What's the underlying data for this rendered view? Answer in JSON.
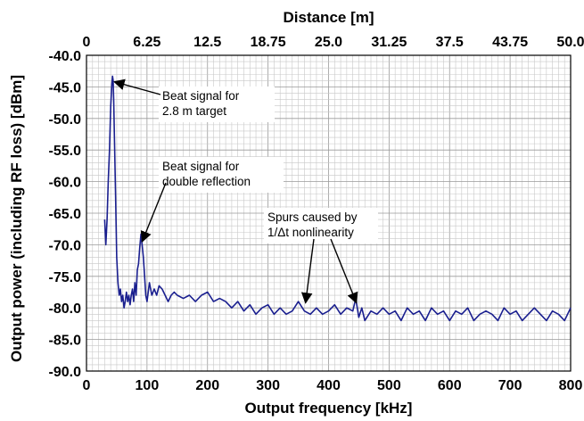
{
  "chart_data": {
    "type": "line",
    "title": "",
    "xlabel": "Output frequency [kHz]",
    "ylabel": "Output power (including RF loss) [dBm]",
    "x2label": "Distance [m]",
    "xlim": [
      0,
      800
    ],
    "ylim": [
      -90,
      -40
    ],
    "x2lim": [
      0,
      50
    ],
    "x_ticks": [
      "0",
      "100",
      "200",
      "300",
      "400",
      "500",
      "600",
      "700",
      "800"
    ],
    "y_ticks": [
      "-40.0",
      "-45.0",
      "-50.0",
      "-55.0",
      "-60.0",
      "-65.0",
      "-70.0",
      "-75.0",
      "-80.0",
      "-85.0",
      "-90.0"
    ],
    "x2_ticks": [
      "0",
      "6.25",
      "12.5",
      "18.75",
      "25.0",
      "31.25",
      "37.5",
      "43.75",
      "50.0"
    ],
    "grid": true,
    "series": [
      {
        "color": "#1a1f8f",
        "x": [
          30,
          32,
          34,
          36,
          38,
          40,
          42,
          43,
          44,
          45,
          46,
          48,
          50,
          52,
          54,
          56,
          58,
          60,
          62,
          64,
          66,
          68,
          70,
          72,
          74,
          76,
          78,
          80,
          82,
          84,
          86,
          88,
          90,
          92,
          94,
          96,
          98,
          100,
          104,
          108,
          112,
          116,
          120,
          125,
          130,
          135,
          140,
          145,
          150,
          160,
          170,
          180,
          190,
          200,
          210,
          220,
          230,
          240,
          250,
          260,
          270,
          280,
          290,
          300,
          310,
          320,
          330,
          340,
          350,
          360,
          370,
          380,
          390,
          400,
          410,
          420,
          430,
          440,
          445,
          450,
          455,
          460,
          470,
          480,
          490,
          500,
          510,
          520,
          530,
          540,
          550,
          560,
          570,
          580,
          590,
          600,
          610,
          620,
          630,
          640,
          650,
          660,
          670,
          680,
          690,
          700,
          710,
          720,
          730,
          740,
          750,
          760,
          770,
          780,
          790,
          800
        ],
        "y": [
          -66,
          -70,
          -66,
          -60,
          -55,
          -48,
          -44.5,
          -43.3,
          -44,
          -47,
          -52,
          -62,
          -72,
          -76,
          -78,
          -77,
          -79,
          -78,
          -80,
          -79,
          -77.5,
          -79,
          -78,
          -79.5,
          -78,
          -77,
          -79,
          -76,
          -78,
          -74,
          -73,
          -70.5,
          -68.3,
          -70,
          -72,
          -75,
          -78,
          -79,
          -76,
          -78,
          -77,
          -78,
          -76.5,
          -77,
          -78,
          -79,
          -78,
          -77.5,
          -78,
          -78.5,
          -78,
          -79,
          -78,
          -77.5,
          -79,
          -78.5,
          -79,
          -80,
          -79,
          -80.5,
          -79.5,
          -81,
          -80,
          -79.5,
          -81,
          -80,
          -81,
          -80.5,
          -79,
          -80.5,
          -81,
          -80,
          -81,
          -80.5,
          -79.5,
          -81,
          -80,
          -80.5,
          -78.5,
          -81.5,
          -80,
          -82,
          -80.5,
          -81,
          -80,
          -81,
          -80.5,
          -82,
          -80,
          -81,
          -80.5,
          -82,
          -80,
          -81,
          -80.5,
          -82,
          -80.5,
          -81,
          -80,
          -82,
          -81,
          -80.5,
          -81,
          -82,
          -80,
          -81,
          -80.5,
          -82,
          -81,
          -80,
          -81,
          -82,
          -80.5,
          -81,
          -82,
          -80
        ]
      }
    ],
    "annotations": [
      {
        "lines": [
          "Beat signal for",
          "2.8 m target"
        ],
        "point_x": 46,
        "point_y": -44.2
      },
      {
        "lines": [
          "Beat signal for",
          "double reflection"
        ],
        "point_x": 92,
        "point_y": -69.5
      },
      {
        "lines": [
          "Spurs caused by",
          "1/Δt nonlinearity"
        ],
        "point_x": 362,
        "point_y": -79.2,
        "point2_x": 446,
        "point2_y": -79.2
      }
    ]
  }
}
